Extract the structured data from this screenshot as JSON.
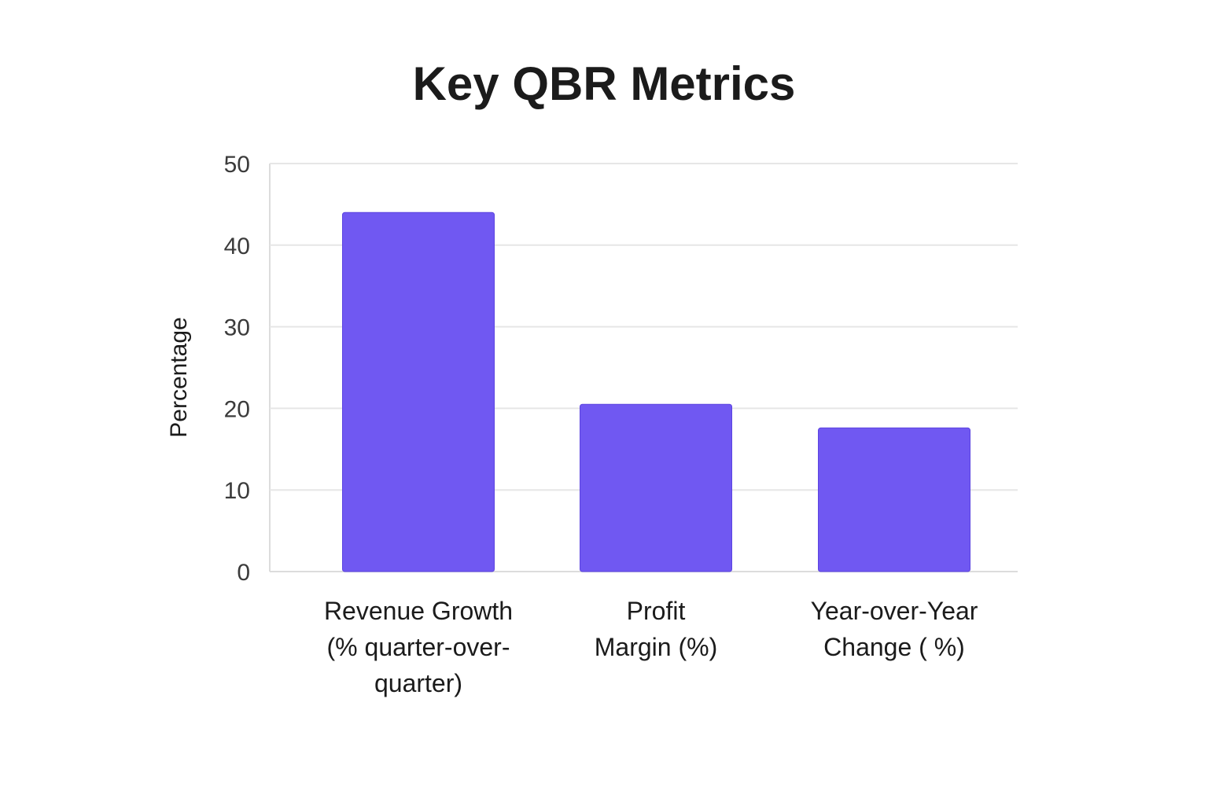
{
  "chart_data": {
    "type": "bar",
    "title": "Key QBR Metrics",
    "xlabel": "",
    "ylabel": "Percentage",
    "categories": [
      "Revenue Growth (% quarter-over-quarter)",
      "Profit Margin (%)",
      "Year-over-Year Change ( %)"
    ],
    "category_lines": [
      [
        "Revenue Growth",
        "(% quarter-over-",
        "quarter)"
      ],
      [
        "Profit",
        "Margin (%)"
      ],
      [
        "Year-over-Year",
        "Change ( %)"
      ]
    ],
    "values": [
      44,
      20.5,
      17.6
    ],
    "ylim": [
      0,
      50
    ],
    "yticks": [
      0,
      10,
      20,
      30,
      40,
      50
    ],
    "grid": true,
    "legend": "none",
    "colors": {
      "bar": "#7058f2",
      "bar_edge": "#5c44e0",
      "grid": "#e6e6e6",
      "axis": "#dcdcdc",
      "text": "#1b1b1b",
      "tick_text": "#3b3b3b"
    }
  }
}
